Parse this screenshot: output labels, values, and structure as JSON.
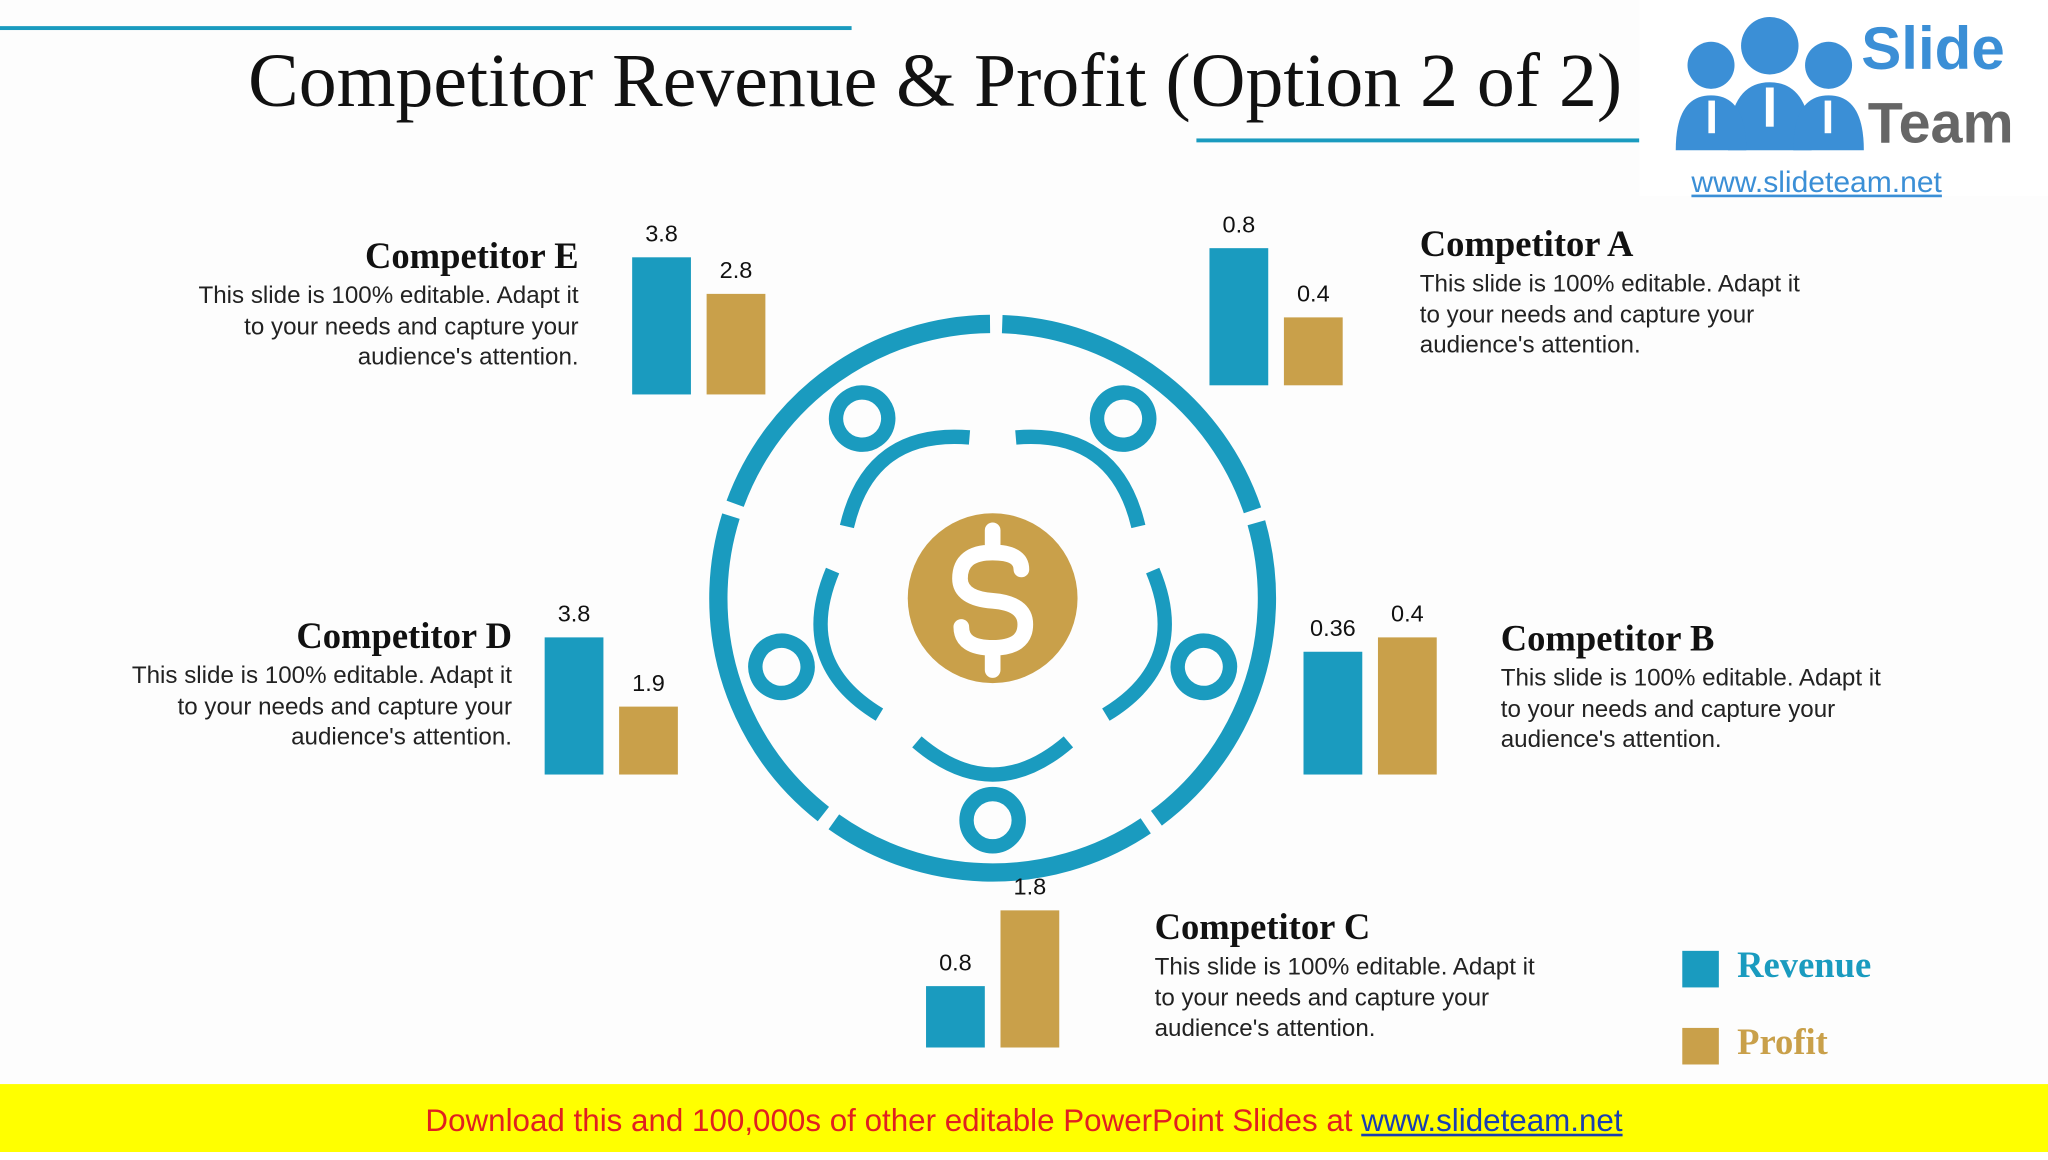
{
  "header": {
    "title": "Competitor Revenue & Profit (Option 2 of 2)"
  },
  "logo": {
    "line1": "Slide",
    "line2": "Team",
    "url": "www.slideteam.net"
  },
  "chart_data": [
    {
      "type": "bar",
      "title": "Competitor A",
      "text": "This slide is 100% editable. Adapt it to your needs and capture your audience's attention.",
      "series": [
        {
          "name": "Revenue",
          "color": "#1a9bbf",
          "values": [
            0.8
          ]
        },
        {
          "name": "Profit",
          "color": "#c9a04a",
          "values": [
            0.4
          ]
        }
      ]
    },
    {
      "type": "bar",
      "title": "Competitor B",
      "text": "This slide is 100% editable. Adapt it to your needs and capture your audience's attention.",
      "series": [
        {
          "name": "Revenue",
          "color": "#1a9bbf",
          "values": [
            0.36
          ]
        },
        {
          "name": "Profit",
          "color": "#c9a04a",
          "values": [
            0.4
          ]
        }
      ]
    },
    {
      "type": "bar",
      "title": "Competitor C",
      "text": "This slide is 100% editable. Adapt it to your needs and capture your audience's attention.",
      "series": [
        {
          "name": "Revenue",
          "color": "#1a9bbf",
          "values": [
            0.8
          ]
        },
        {
          "name": "Profit",
          "color": "#c9a04a",
          "values": [
            1.8
          ]
        }
      ]
    },
    {
      "type": "bar",
      "title": "Competitor D",
      "text": "This slide is 100% editable. Adapt it to your needs and capture your audience's attention.",
      "series": [
        {
          "name": "Revenue",
          "color": "#1a9bbf",
          "values": [
            3.8
          ]
        },
        {
          "name": "Profit",
          "color": "#c9a04a",
          "values": [
            1.9
          ]
        }
      ]
    },
    {
      "type": "bar",
      "title": "Competitor E",
      "text": "This slide is 100% editable. Adapt it to your needs and capture your audience's attention.",
      "series": [
        {
          "name": "Revenue",
          "color": "#1a9bbf",
          "values": [
            3.8
          ]
        },
        {
          "name": "Profit",
          "color": "#c9a04a",
          "values": [
            2.8
          ]
        }
      ]
    }
  ],
  "footer": {
    "text": "Download this and 100,000s of other editable PowerPoint Slides at",
    "link": "www.slideteam.net"
  }
}
